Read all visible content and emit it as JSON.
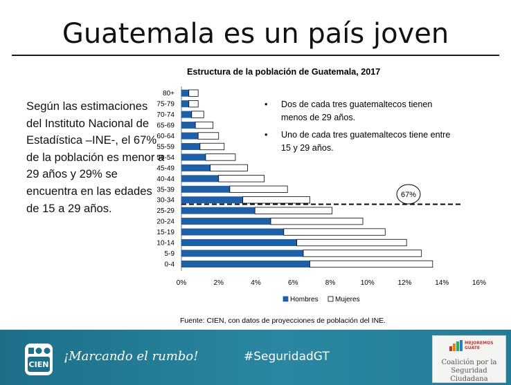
{
  "slide": {
    "title": "Guatemala es un país joven",
    "left_text": "Según las estimaciones del Instituto Nacional de Estadística –INE-, el 67% de la población es menor a 29 años y 29% se encuentra en las edades de 15 a 29 años."
  },
  "bullets": [
    "Dos de cada tres guatemaltecos tienen menos de 29 años.",
    "Uno de cada tres guatemaltecos tiene entre 15 y 29 años."
  ],
  "source": "Fuente: CIEN, con datos de proyecciones de población del INE.",
  "chart_data": {
    "type": "bar",
    "orientation": "horizontal",
    "stacked": true,
    "title": "Estructura de la población de Guatemala, 2017",
    "categories": [
      "80+",
      "75-79",
      "70-74",
      "65-69",
      "60-64",
      "55-59",
      "50-54",
      "45-49",
      "40-44",
      "35-39",
      "30-34",
      "25-29",
      "20-24",
      "15-19",
      "10-14",
      "5-9",
      "0-4"
    ],
    "series": [
      {
        "name": "Hombres",
        "color": "#1f5fa6",
        "values": [
          0.4,
          0.4,
          0.55,
          0.75,
          0.9,
          1.0,
          1.3,
          1.55,
          2.0,
          2.6,
          3.3,
          3.95,
          4.8,
          5.5,
          6.2,
          6.55,
          6.9
        ]
      },
      {
        "name": "Mujeres",
        "color": "#ffffff",
        "values": [
          0.5,
          0.5,
          0.65,
          0.95,
          1.1,
          1.3,
          1.6,
          2.0,
          2.45,
          3.1,
          3.6,
          4.15,
          4.95,
          5.45,
          5.9,
          6.35,
          6.6
        ]
      }
    ],
    "xlim": [
      0,
      16
    ],
    "xticks": [
      "0%",
      "2%",
      "4%",
      "6%",
      "8%",
      "10%",
      "12%",
      "14%",
      "16%"
    ],
    "xlabel": "",
    "ylabel": "",
    "annotation": {
      "label": "67%",
      "split_between": [
        "30-34",
        "25-29"
      ]
    },
    "legend": "bottom"
  },
  "footer": {
    "brand": "CIEN",
    "slogan": "¡Marcando el rumbo!",
    "hashtag": "#SeguridadGT",
    "partner_tag_1": "MEJOREMOS",
    "partner_tag_2": "GUATE",
    "partner_name_1": "Coalición por la",
    "partner_name_2": "Seguridad Ciudadana"
  }
}
